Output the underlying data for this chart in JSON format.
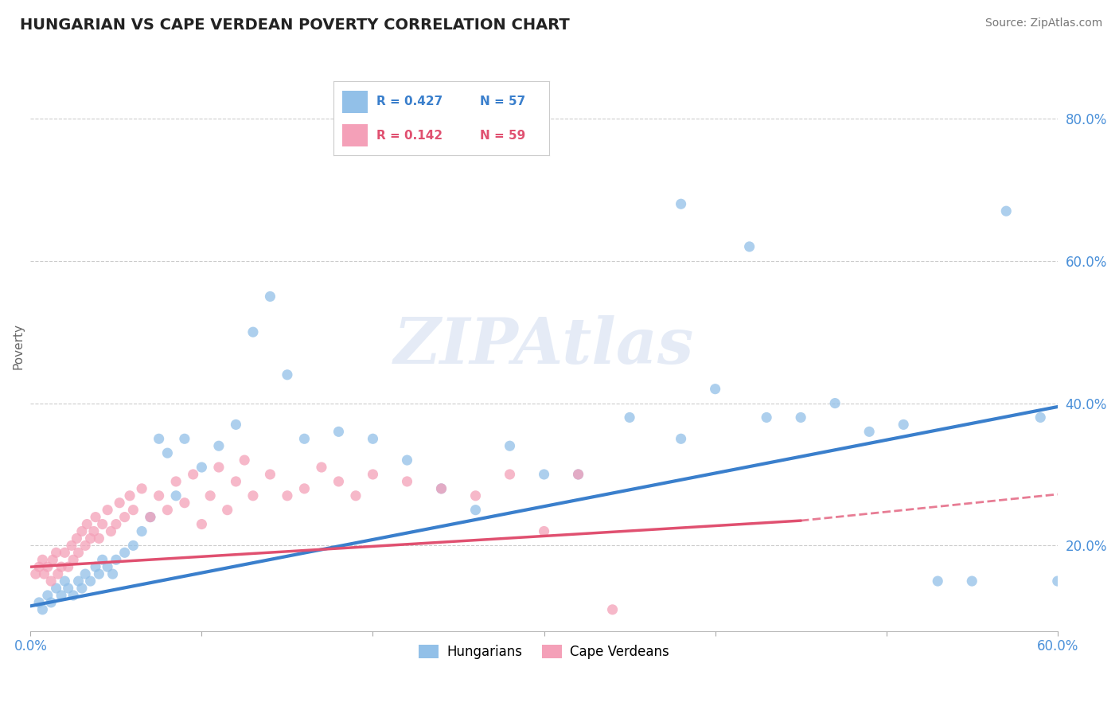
{
  "title": "HUNGARIAN VS CAPE VERDEAN POVERTY CORRELATION CHART",
  "source": "Source: ZipAtlas.com",
  "ylabel": "Poverty",
  "xlim": [
    0.0,
    0.6
  ],
  "ylim": [
    0.08,
    0.88
  ],
  "xticks": [
    0.0,
    0.1,
    0.2,
    0.3,
    0.4,
    0.5,
    0.6
  ],
  "xticklabels": [
    "0.0%",
    "",
    "",
    "",
    "",
    "",
    "60.0%"
  ],
  "yticks": [
    0.2,
    0.4,
    0.6,
    0.8
  ],
  "yticklabels": [
    "20.0%",
    "40.0%",
    "60.0%",
    "80.0%"
  ],
  "hungarian_color": "#92C0E8",
  "cape_verdean_color": "#F4A0B8",
  "trend_hungarian_color": "#3A7FCC",
  "trend_cape_verdean_color": "#E05070",
  "legend_R_hungarian": "R = 0.427",
  "legend_N_hungarian": "N = 57",
  "legend_R_cape_verdean": "R = 0.142",
  "legend_N_cape_verdean": "N = 59",
  "watermark": "ZIPAtlas",
  "hungarian_x": [
    0.005,
    0.007,
    0.01,
    0.012,
    0.015,
    0.018,
    0.02,
    0.022,
    0.025,
    0.028,
    0.03,
    0.032,
    0.035,
    0.038,
    0.04,
    0.042,
    0.045,
    0.048,
    0.05,
    0.055,
    0.06,
    0.065,
    0.07,
    0.075,
    0.08,
    0.085,
    0.09,
    0.1,
    0.11,
    0.12,
    0.13,
    0.14,
    0.15,
    0.16,
    0.18,
    0.2,
    0.22,
    0.24,
    0.26,
    0.28,
    0.3,
    0.32,
    0.35,
    0.38,
    0.4,
    0.43,
    0.45,
    0.47,
    0.49,
    0.51,
    0.53,
    0.55,
    0.57,
    0.59,
    0.6,
    0.38,
    0.42
  ],
  "hungarian_y": [
    0.12,
    0.11,
    0.13,
    0.12,
    0.14,
    0.13,
    0.15,
    0.14,
    0.13,
    0.15,
    0.14,
    0.16,
    0.15,
    0.17,
    0.16,
    0.18,
    0.17,
    0.16,
    0.18,
    0.19,
    0.2,
    0.22,
    0.24,
    0.35,
    0.33,
    0.27,
    0.35,
    0.31,
    0.34,
    0.37,
    0.5,
    0.55,
    0.44,
    0.35,
    0.36,
    0.35,
    0.32,
    0.28,
    0.25,
    0.34,
    0.3,
    0.3,
    0.38,
    0.35,
    0.42,
    0.38,
    0.38,
    0.4,
    0.36,
    0.37,
    0.15,
    0.15,
    0.67,
    0.38,
    0.15,
    0.68,
    0.62
  ],
  "cape_verdean_x": [
    0.003,
    0.005,
    0.007,
    0.008,
    0.01,
    0.012,
    0.013,
    0.015,
    0.016,
    0.018,
    0.02,
    0.022,
    0.024,
    0.025,
    0.027,
    0.028,
    0.03,
    0.032,
    0.033,
    0.035,
    0.037,
    0.038,
    0.04,
    0.042,
    0.045,
    0.047,
    0.05,
    0.052,
    0.055,
    0.058,
    0.06,
    0.065,
    0.07,
    0.075,
    0.08,
    0.085,
    0.09,
    0.095,
    0.1,
    0.105,
    0.11,
    0.115,
    0.12,
    0.125,
    0.13,
    0.14,
    0.15,
    0.16,
    0.17,
    0.18,
    0.19,
    0.2,
    0.22,
    0.24,
    0.26,
    0.28,
    0.3,
    0.32,
    0.34
  ],
  "cape_verdean_y": [
    0.16,
    0.17,
    0.18,
    0.16,
    0.17,
    0.15,
    0.18,
    0.19,
    0.16,
    0.17,
    0.19,
    0.17,
    0.2,
    0.18,
    0.21,
    0.19,
    0.22,
    0.2,
    0.23,
    0.21,
    0.22,
    0.24,
    0.21,
    0.23,
    0.25,
    0.22,
    0.23,
    0.26,
    0.24,
    0.27,
    0.25,
    0.28,
    0.24,
    0.27,
    0.25,
    0.29,
    0.26,
    0.3,
    0.23,
    0.27,
    0.31,
    0.25,
    0.29,
    0.32,
    0.27,
    0.3,
    0.27,
    0.28,
    0.31,
    0.29,
    0.27,
    0.3,
    0.29,
    0.28,
    0.27,
    0.3,
    0.22,
    0.3,
    0.11
  ],
  "trend_h_x0": 0.0,
  "trend_h_y0": 0.115,
  "trend_h_x1": 0.6,
  "trend_h_y1": 0.395,
  "trend_c_x0": 0.0,
  "trend_c_y0": 0.17,
  "trend_c_x1": 0.45,
  "trend_c_y1": 0.235,
  "trend_c_dash_x1": 0.6,
  "trend_c_dash_y1": 0.272
}
